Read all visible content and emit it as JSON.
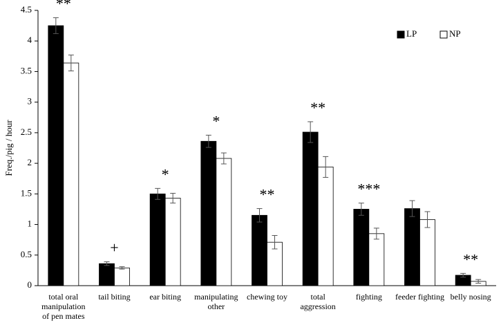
{
  "chart_data": {
    "type": "bar",
    "ylabel": "Freq./pig / hour",
    "categories": [
      "total oral manipulation of pen mates",
      "tail biting",
      "ear biting",
      "manipulating other",
      "chewing toy",
      "total aggression",
      "fighting",
      "feeder fighting",
      "belly nosing"
    ],
    "series": [
      {
        "name": "LP",
        "color": "#000000",
        "values": [
          4.25,
          0.36,
          1.5,
          2.36,
          1.15,
          2.51,
          1.25,
          1.26,
          0.17
        ],
        "errors": [
          0.13,
          0.03,
          0.09,
          0.1,
          0.11,
          0.17,
          0.1,
          0.13,
          0.03
        ]
      },
      {
        "name": "NP",
        "color": "#ffffff",
        "values": [
          3.64,
          0.29,
          1.43,
          2.08,
          0.71,
          1.94,
          0.85,
          1.08,
          0.07
        ],
        "errors": [
          0.13,
          0.02,
          0.08,
          0.09,
          0.11,
          0.17,
          0.09,
          0.13,
          0.03
        ]
      }
    ],
    "annotations": [
      "**",
      "+",
      "*",
      "*",
      "**",
      "**",
      "***",
      null,
      "**"
    ],
    "ylim": [
      0,
      4.5
    ],
    "yticks": [
      0,
      0.5,
      1,
      1.5,
      2,
      2.5,
      3,
      3.5,
      4,
      4.5
    ],
    "legend": "top-right",
    "grid": false
  }
}
